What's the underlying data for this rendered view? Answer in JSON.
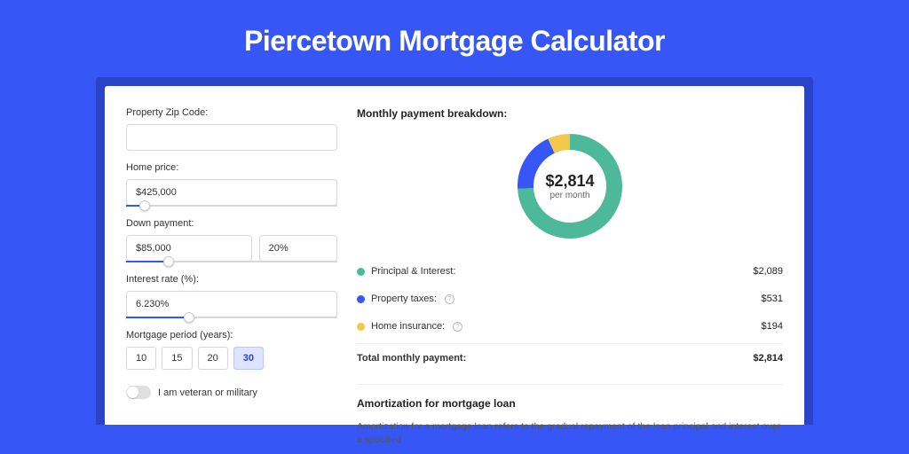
{
  "page": {
    "title": "Piercetown Mortgage Calculator",
    "background_color": "#3657f6",
    "inner_background_color": "#2944c9",
    "card_background": "#ffffff"
  },
  "form": {
    "zip": {
      "label": "Property Zip Code:",
      "value": ""
    },
    "home_price": {
      "label": "Home price:",
      "value": "$425,000",
      "slider_pct": 9
    },
    "down_payment": {
      "label": "Down payment:",
      "amount": "$85,000",
      "percent": "20%",
      "slider_pct": 20
    },
    "interest_rate": {
      "label": "Interest rate (%):",
      "value": "6.230%",
      "slider_pct": 30
    },
    "mortgage_period": {
      "label": "Mortgage period (years):",
      "options": [
        "10",
        "15",
        "20",
        "30"
      ],
      "selected_index": 3
    },
    "veteran": {
      "label": "I am veteran or military",
      "checked": false
    }
  },
  "breakdown": {
    "title": "Monthly payment breakdown:",
    "donut": {
      "value": "$2,814",
      "sub": "per month",
      "slices": [
        {
          "label": "Principal & Interest",
          "value": 2089,
          "color": "#4eb89a"
        },
        {
          "label": "Property taxes",
          "value": 531,
          "color": "#3657f6"
        },
        {
          "label": "Home insurance",
          "value": 194,
          "color": "#f2c94c"
        }
      ],
      "track_width": 18
    },
    "rows": [
      {
        "dot": "#4eb89a",
        "label": "Principal & Interest:",
        "info": false,
        "value": "$2,089"
      },
      {
        "dot": "#3657f6",
        "label": "Property taxes:",
        "info": true,
        "value": "$531"
      },
      {
        "dot": "#f2c94c",
        "label": "Home insurance:",
        "info": true,
        "value": "$194"
      }
    ],
    "total": {
      "label": "Total monthly payment:",
      "value": "$2,814"
    }
  },
  "amortization": {
    "title": "Amortization for mortgage loan",
    "text": "Amortization for a mortgage loan refers to the gradual repayment of the loan principal and interest over a specified"
  }
}
